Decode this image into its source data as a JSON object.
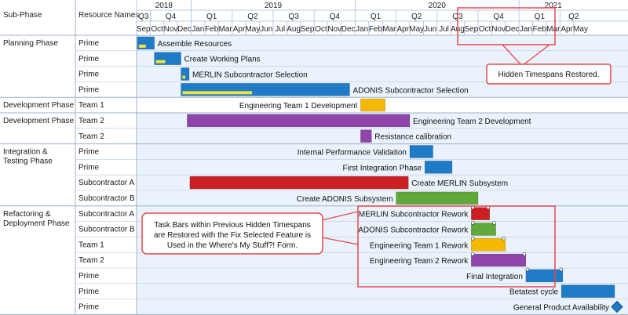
{
  "header": {
    "subphase_label": "Sub-Phase",
    "resource_label": "Resource Names",
    "years": [
      "2018",
      "2019",
      "2020",
      "2021"
    ],
    "quarters": [
      "Q3",
      "Q4",
      "Q1",
      "Q2",
      "Q3",
      "Q4",
      "Q1",
      "Q2",
      "Q3",
      "Q4",
      "Q1",
      "Q2"
    ],
    "months": [
      "Sep",
      "Oct",
      "Nov",
      "Dec",
      "Jan",
      "Feb",
      "Mar",
      "Apr",
      "May",
      "Jun",
      "Jul",
      "Aug",
      "Sep",
      "Oct",
      "Nov",
      "Dec",
      "Jan",
      "Feb",
      "Mar",
      "Apr",
      "May",
      "Jun",
      "Jul",
      "Aug",
      "Sep",
      "Oct",
      "Nov",
      "Dec",
      "Jan",
      "Feb",
      "Mar",
      "Apr",
      "May"
    ]
  },
  "groups": [
    {
      "label": "Planning Phase",
      "rows": 4
    },
    {
      "label": "Development Phase",
      "rows": 1
    },
    {
      "label": "Development Phase",
      "rows": 2
    },
    {
      "label": "Integration & Testing Phase",
      "rows": 4
    },
    {
      "label": "Refactoring & Deployment Phase",
      "rows": 7
    }
  ],
  "rows": [
    {
      "resource": "Prime",
      "task": "Assemble Resources",
      "color": "#1f7bc6",
      "progress": 0.5
    },
    {
      "resource": "Prime",
      "task": "Create Working Plans",
      "color": "#1f7bc6",
      "progress": 0.4
    },
    {
      "resource": "Prime",
      "task": "MERLIN Subcontractor Selection",
      "color": "#1f7bc6",
      "progress": 0.55
    },
    {
      "resource": "Prime",
      "task": "ADONIS Subcontractor Selection",
      "color": "#1f7bc6",
      "progress": 0.42
    },
    {
      "resource": "Team 1",
      "task": "Engineering Team 1 Development",
      "color": "#f5b800",
      "progress": 0
    },
    {
      "resource": "Team 2",
      "task": "Engineering Team 2 Development",
      "color": "#8e44a8",
      "progress": 0
    },
    {
      "resource": "Team 2",
      "task": "Resistance calibration",
      "color": "#8e44a8",
      "progress": 0
    },
    {
      "resource": "Prime",
      "task": "Internal Performance Validation",
      "color": "#1f7bc6",
      "progress": 0
    },
    {
      "resource": "Prime",
      "task": "First Integration Phase",
      "color": "#1f7bc6",
      "progress": 0
    },
    {
      "resource": "Subcontractor A",
      "task": "Create MERLIN Subsystem",
      "color": "#cc1f24",
      "progress": 0
    },
    {
      "resource": "Subcontractor B",
      "task": "Create ADONIS Subsystem",
      "color": "#5fa83a",
      "progress": 0
    },
    {
      "resource": "Subcontractor A",
      "task": "MERLIN Subcontractor Rework",
      "color": "#cc1f24",
      "progress": 0
    },
    {
      "resource": "Subcontractor B",
      "task": "ADONIS Subcontractor Rework",
      "color": "#5fa83a",
      "progress": 0
    },
    {
      "resource": "Team 1",
      "task": "Engineering Team 1 Rework",
      "color": "#f5b800",
      "progress": 0
    },
    {
      "resource": "Team 2",
      "task": "Engineering Team 2 Rework",
      "color": "#8e44a8",
      "progress": 0
    },
    {
      "resource": "Prime",
      "task": "Final Integration",
      "color": "#1f7bc6",
      "progress": 0
    },
    {
      "resource": "Prime",
      "task": "Betatest cycle",
      "color": "#1f7bc6",
      "progress": 0
    },
    {
      "resource": "Prime",
      "task": "General Product Availability",
      "color": "#1f7bc6",
      "progress": 0,
      "milestone": true
    }
  ],
  "callouts": {
    "hidden_timespans": "Hidden  Timespans Restored.",
    "task_bars_line1": "Task Bars within Previous Hidden Timespans",
    "task_bars_line2": "are Restored with the Fix Selected Feature is",
    "task_bars_line3": "Used in the Where's My Stuff?! Form."
  },
  "colors": {
    "header_bg": "#ffffff",
    "row_bg": "#eaf3fb",
    "grid": "#b9cbe0",
    "callout_border": "#e8474f",
    "progress": "#f2e33a"
  }
}
